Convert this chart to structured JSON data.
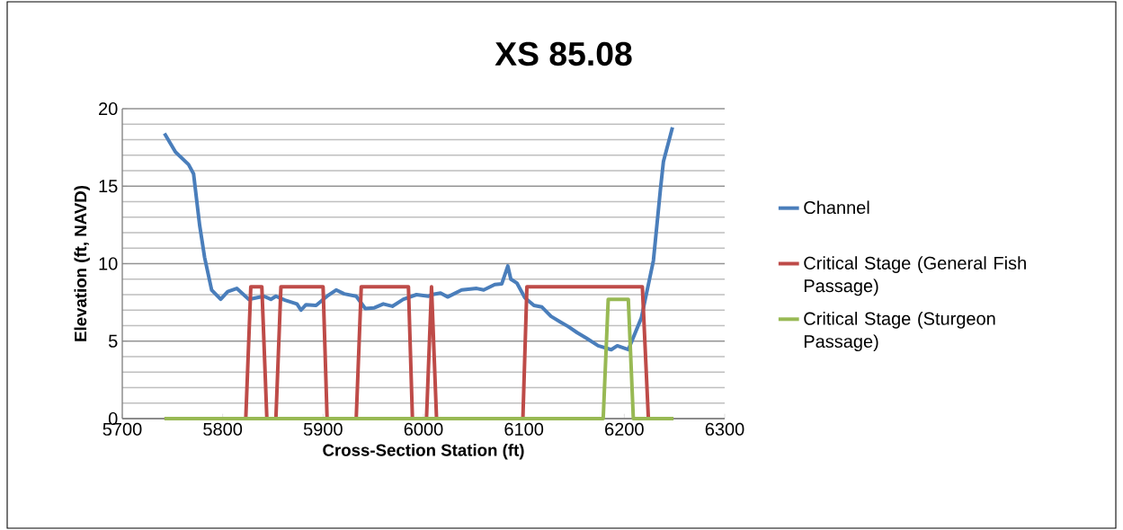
{
  "chart_data": {
    "type": "line",
    "title": "XS 85.08",
    "xlabel": "Cross-Section Station (ft)",
    "ylabel": "Elevation (ft, NAVD)",
    "xlim": [
      5700,
      6300
    ],
    "xticks": [
      5700,
      5800,
      5900,
      6000,
      6100,
      6200,
      6300
    ],
    "ylim": [
      0,
      20
    ],
    "yticks": [
      0,
      5,
      10,
      15,
      20
    ],
    "grid": "y",
    "legend": "right",
    "marker": "none",
    "line_style": "solid",
    "series": [
      {
        "name": "Channel",
        "color": "#4a7ebb",
        "x": [
          5742,
          5753,
          5766,
          5771,
          5777,
          5782,
          5789,
          5798,
          5805,
          5814,
          5826,
          5841,
          5848,
          5853,
          5862,
          5874,
          5878,
          5883,
          5893,
          5904,
          5913,
          5921,
          5933,
          5942,
          5951,
          5960,
          5969,
          5980,
          5993,
          6005,
          6008,
          6017,
          6024,
          6038,
          6053,
          6060,
          6071,
          6078,
          6084,
          6087,
          6093,
          6101,
          6110,
          6118,
          6127,
          6136,
          6144,
          6153,
          6162,
          6174,
          6187,
          6193,
          6204,
          6217,
          6229,
          6236,
          6239,
          6248
        ],
        "values": [
          18.4,
          17.2,
          16.4,
          15.8,
          12.5,
          10.4,
          8.3,
          7.7,
          8.2,
          8.4,
          7.7,
          7.9,
          7.7,
          7.9,
          7.65,
          7.4,
          7.0,
          7.35,
          7.3,
          7.9,
          8.3,
          8.05,
          7.9,
          7.1,
          7.15,
          7.4,
          7.25,
          7.7,
          8.0,
          7.9,
          8.0,
          8.1,
          7.85,
          8.3,
          8.4,
          8.3,
          8.65,
          8.7,
          9.85,
          9.0,
          8.75,
          7.8,
          7.3,
          7.2,
          6.6,
          6.25,
          5.95,
          5.55,
          5.2,
          4.7,
          4.45,
          4.7,
          4.45,
          6.5,
          10.2,
          14.8,
          16.6,
          18.8
        ]
      },
      {
        "name": "Critical Stage (General Fish Passage)",
        "color": "#be4b48",
        "x": [
          5742,
          5823,
          5828,
          5839,
          5844,
          5853,
          5858,
          5900,
          5904,
          5933,
          5938,
          5985,
          5989,
          6003,
          6008,
          6013,
          6099,
          6103,
          6218,
          6224,
          6249
        ],
        "values": [
          0,
          0,
          8.5,
          8.5,
          0,
          0,
          8.5,
          8.5,
          0,
          0,
          8.5,
          8.5,
          0,
          0,
          8.5,
          0,
          0,
          8.5,
          8.5,
          0,
          0
        ]
      },
      {
        "name": "Critical Stage (Sturgeon Passage)",
        "color": "#98b954",
        "x": [
          5742,
          6179,
          6184,
          6204,
          6209,
          6249
        ],
        "values": [
          0,
          0,
          7.7,
          7.7,
          0,
          0
        ]
      }
    ]
  }
}
